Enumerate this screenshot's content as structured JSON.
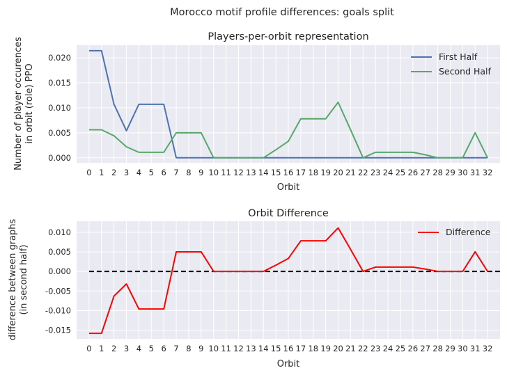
{
  "figure": {
    "title": "Morocco motif profile differences: goals split"
  },
  "colors": {
    "background": "#eaeaf2",
    "grid": "#ffffff",
    "first_half": "#4c72b0",
    "second_half": "#55a868",
    "difference": "#ff0000",
    "zero_line": "#000000"
  },
  "chart_data": [
    {
      "type": "line",
      "title": "Players-per-orbit representation",
      "xlabel": "Orbit",
      "ylabel_lines": [
        "Number of player occurences",
        "in orbit (role) PPO"
      ],
      "x": [
        0,
        1,
        2,
        3,
        4,
        5,
        6,
        7,
        8,
        9,
        10,
        11,
        12,
        13,
        14,
        15,
        16,
        17,
        18,
        19,
        20,
        21,
        22,
        23,
        24,
        25,
        26,
        27,
        28,
        29,
        30,
        31,
        32
      ],
      "xlim": [
        -1,
        33
      ],
      "ylim": [
        -0.001,
        0.0225
      ],
      "yticks": [
        0.0,
        0.005,
        0.01,
        0.015,
        0.02
      ],
      "ytick_labels": [
        "0.000",
        "0.005",
        "0.010",
        "0.015",
        "0.020"
      ],
      "grid": true,
      "legend": "top-right",
      "series": [
        {
          "name": "First Half",
          "color": "#4c72b0",
          "values": [
            0.0214,
            0.0214,
            0.0107,
            0.0054,
            0.0107,
            0.0107,
            0.0107,
            0,
            0,
            0,
            0,
            0,
            0,
            0,
            0,
            0,
            0,
            0,
            0,
            0,
            0,
            0,
            0,
            0,
            0,
            0,
            0,
            0,
            0,
            0,
            0,
            0,
            0
          ]
        },
        {
          "name": "Second Half",
          "color": "#55a868",
          "values": [
            0.0056,
            0.0056,
            0.0044,
            0.0022,
            0.0011,
            0.0011,
            0.0011,
            0.005,
            0.005,
            0.005,
            0,
            0,
            0,
            0,
            0,
            0.0016,
            0.0033,
            0.0078,
            0.0078,
            0.0078,
            0.0111,
            0.0056,
            0,
            0.0011,
            0.0011,
            0.0011,
            0.0011,
            0.0006,
            0,
            0,
            0,
            0.005,
            0
          ]
        }
      ]
    },
    {
      "type": "line",
      "title": "Orbit Difference",
      "xlabel": "Orbit",
      "ylabel_lines": [
        "difference between graphs",
        "(in second half)"
      ],
      "x": [
        0,
        1,
        2,
        3,
        4,
        5,
        6,
        7,
        8,
        9,
        10,
        11,
        12,
        13,
        14,
        15,
        16,
        17,
        18,
        19,
        20,
        21,
        22,
        23,
        24,
        25,
        26,
        27,
        28,
        29,
        30,
        31,
        32
      ],
      "xlim": [
        -1,
        33
      ],
      "ylim": [
        -0.0172,
        0.0128
      ],
      "yticks": [
        -0.015,
        -0.01,
        -0.005,
        0.0,
        0.005,
        0.01
      ],
      "ytick_labels": [
        "-0.015",
        "-0.010",
        "-0.005",
        "0.000",
        "0.005",
        "0.010"
      ],
      "grid": true,
      "legend": "top-right",
      "series": [
        {
          "name": "Difference",
          "color": "#ff0000",
          "values": [
            -0.0158,
            -0.0158,
            -0.0063,
            -0.0032,
            -0.0096,
            -0.0096,
            -0.0096,
            0.005,
            0.005,
            0.005,
            0,
            0,
            0,
            0,
            0,
            0.0016,
            0.0033,
            0.0078,
            0.0078,
            0.0078,
            0.0111,
            0.0056,
            0,
            0.0011,
            0.0011,
            0.0011,
            0.0011,
            0.0006,
            0,
            0,
            0,
            0.005,
            0
          ]
        }
      ],
      "reference_line": {
        "y": 0.0,
        "x_range": [
          0,
          33
        ],
        "style": "dashed",
        "color": "#000000"
      }
    }
  ]
}
